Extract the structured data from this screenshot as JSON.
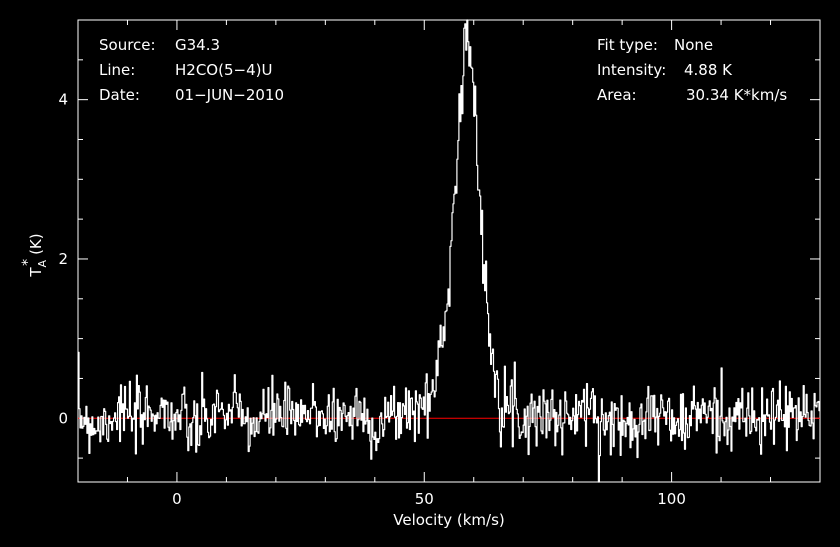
{
  "chart_data": {
    "type": "line",
    "xlabel": "Velocity (km/s)",
    "ylabel": "T",
    "ylabel_sup": "*",
    "ylabel_sub": "A",
    "ylabel_unit": "(K)",
    "xlim": [
      -20,
      130
    ],
    "ylim": [
      -0.8,
      5.0
    ],
    "x_ticks": [
      0,
      50,
      100
    ],
    "y_ticks": [
      0,
      2,
      4
    ],
    "baseline": 0,
    "colors": {
      "background": "#000000",
      "axes": "#ffffff",
      "spectrum": "#ffffff",
      "baseline": "#ff0000"
    },
    "info_left": [
      {
        "label": "Source:",
        "value": "G34.3"
      },
      {
        "label": "Line:",
        "value": "H2CO(5−4)U"
      },
      {
        "label": "Date:",
        "value": "01−JUN−2010"
      }
    ],
    "info_right": [
      {
        "label": "Fit type:",
        "value": "None"
      },
      {
        "label": "Intensity:",
        "value": "4.88 K"
      },
      {
        "label": "Area:",
        "value": "30.34 K*km/s"
      }
    ],
    "series": [
      {
        "x": [
          -20,
          -16,
          -12,
          -8,
          -4,
          0,
          4,
          8,
          12,
          16,
          20,
          24,
          28,
          32,
          36,
          40,
          44,
          47,
          49,
          51,
          52,
          53,
          54,
          55,
          56,
          57,
          58,
          58.6,
          59.2,
          60,
          61,
          62,
          63,
          64,
          65,
          66,
          67,
          68,
          70,
          74,
          78,
          82,
          86,
          90,
          94,
          98,
          102,
          106,
          110,
          114,
          118,
          122,
          126,
          130
        ],
        "y": [
          0.05,
          -0.1,
          0.1,
          -0.05,
          0.15,
          0.0,
          -0.15,
          0.1,
          0.05,
          -0.1,
          0.12,
          -0.05,
          0.1,
          0.0,
          0.08,
          -0.1,
          0.05,
          0.1,
          0.12,
          0.25,
          0.45,
          0.75,
          1.2,
          1.9,
          2.8,
          3.8,
          4.6,
          4.88,
          4.7,
          3.9,
          2.8,
          1.9,
          1.2,
          0.7,
          0.4,
          0.25,
          0.15,
          0.1,
          0.0,
          0.1,
          -0.05,
          0.12,
          0.0,
          -0.1,
          0.08,
          0.05,
          -0.1,
          0.1,
          0.0,
          0.05,
          -0.08,
          0.1,
          0.0,
          0.05
        ]
      }
    ]
  }
}
